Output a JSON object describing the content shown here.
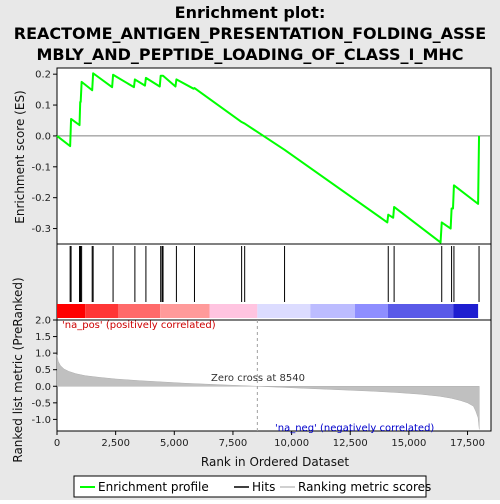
{
  "title_line1": "Enrichment plot:",
  "title_line2": "REACTOME_ANTIGEN_PRESENTATION_FOLDING_ASSE",
  "title_line3": "MBLY_AND_PEPTIDE_LOADING_OF_CLASS_I_MHC",
  "chart_data": {
    "type": "line",
    "top_panel": {
      "ylabel": "Enrichment score (ES)",
      "ylim": [
        -0.35,
        0.22
      ],
      "yticks": [
        0.2,
        0.1,
        0.0,
        -0.1,
        -0.2,
        -0.3
      ],
      "ytick_labels": [
        "0.2",
        "0.1",
        "0.0",
        "-0.1",
        "-0.2",
        "-0.3"
      ],
      "series": [
        {
          "name": "Enrichment profile",
          "color": "#00ff00",
          "x": [
            0,
            560,
            600,
            960,
            990,
            1010,
            1050,
            1500,
            1540,
            2350,
            2390,
            3280,
            3320,
            3750,
            3790,
            4380,
            4420,
            4480,
            4520,
            5050,
            5090,
            5820,
            5860,
            7870,
            8000,
            9700,
            14080,
            14120,
            14330,
            14370,
            16350,
            16400,
            16780,
            16820,
            16880,
            16920,
            17950,
            17990
          ],
          "y": [
            0.0,
            -0.033,
            0.055,
            0.035,
            0.11,
            0.11,
            0.175,
            0.148,
            0.203,
            0.158,
            0.198,
            0.158,
            0.183,
            0.163,
            0.188,
            0.16,
            0.195,
            0.195,
            0.195,
            0.16,
            0.183,
            0.153,
            0.155,
            0.045,
            0.04,
            -0.045,
            -0.28,
            -0.255,
            -0.265,
            -0.23,
            -0.345,
            -0.28,
            -0.3,
            -0.235,
            -0.235,
            -0.16,
            -0.22,
            0.0
          ]
        }
      ],
      "zero_line": 0.0
    },
    "hits_panel": {
      "legend_label": "Hits",
      "hit_positions": [
        560,
        600,
        960,
        990,
        1010,
        1050,
        1500,
        1540,
        2390,
        3320,
        3790,
        4420,
        4480,
        4520,
        5090,
        5860,
        7870,
        8000,
        9700,
        14120,
        14370,
        16400,
        16820,
        16920,
        17990
      ]
    },
    "rank_metric_panel": {
      "ylabel": "Ranked list metric (PreRanked)",
      "xlabel": "Rank in Ordered Dataset",
      "ylim": [
        -1.35,
        2.0
      ],
      "yticks": [
        2.0,
        1.5,
        1.0,
        0.5,
        0.0,
        -0.5,
        -1.0
      ],
      "ytick_labels": [
        "2.0",
        "1.5",
        "1.0",
        "0.5",
        "0.0",
        "-0.5",
        "-1.0"
      ],
      "xlim": [
        0,
        18500
      ],
      "xticks": [
        0,
        2500,
        5000,
        7500,
        10000,
        12500,
        15000,
        17500
      ],
      "xtick_labels": [
        "0",
        "2,500",
        "5,000",
        "7,500",
        "10,000",
        "12,500",
        "15,000",
        "17,500"
      ],
      "legend_label": "Ranking metric scores",
      "metric_x": [
        0,
        50,
        150,
        300,
        500,
        800,
        1200,
        1800,
        2500,
        3500,
        4500,
        5500,
        6500,
        7500,
        8540,
        9500,
        10500,
        11500,
        12500,
        13500,
        14500,
        15500,
        16300,
        16800,
        17200,
        17500,
        17750,
        17850,
        17950,
        18000
      ],
      "metric_y": [
        0.95,
        0.75,
        0.62,
        0.52,
        0.45,
        0.38,
        0.32,
        0.27,
        0.22,
        0.17,
        0.13,
        0.09,
        0.06,
        0.03,
        0.0,
        -0.03,
        -0.06,
        -0.09,
        -0.12,
        -0.15,
        -0.19,
        -0.24,
        -0.3,
        -0.36,
        -0.43,
        -0.5,
        -0.6,
        -0.75,
        -0.95,
        -1.3
      ]
    },
    "annotations": {
      "zero_cross": "Zero cross at 8540",
      "zero_cross_x": 8540,
      "pos_label": "'na_pos' (positively correlated)",
      "neg_label": "'na_neg' (negatively correlated)"
    },
    "legend": {
      "placement": "bottom",
      "entries": [
        "Enrichment profile",
        "Hits",
        "Ranking metric scores"
      ]
    },
    "colors": {
      "profile": "#00ff00",
      "hits": "#000000",
      "metric_fill": "#c0c0c0",
      "pos_label": "#cc0000",
      "neg_label": "#0000cc",
      "zero_line": "#a0a0a0"
    },
    "colorbar": [
      {
        "start": 0,
        "end": 1200,
        "color": "#ff0000"
      },
      {
        "start": 1200,
        "end": 2600,
        "color": "#ff3636"
      },
      {
        "start": 2600,
        "end": 4400,
        "color": "#ff6a6a"
      },
      {
        "start": 4400,
        "end": 6500,
        "color": "#ff9a9a"
      },
      {
        "start": 6500,
        "end": 8540,
        "color": "#ffc4e0"
      },
      {
        "start": 8540,
        "end": 10800,
        "color": "#dcdcff"
      },
      {
        "start": 10800,
        "end": 12700,
        "color": "#bcbcff"
      },
      {
        "start": 12700,
        "end": 14100,
        "color": "#8e8eff"
      },
      {
        "start": 14100,
        "end": 16900,
        "color": "#5a5ae8"
      },
      {
        "start": 16900,
        "end": 17950,
        "color": "#1e1ed0"
      }
    ]
  }
}
